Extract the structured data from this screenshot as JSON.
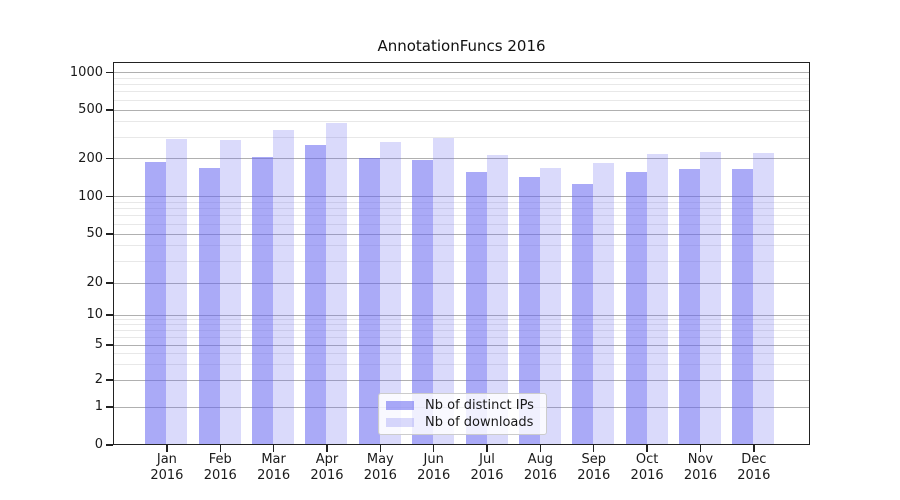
{
  "title": "AnnotationFuncs 2016",
  "chart_data": {
    "type": "bar",
    "title": "AnnotationFuncs 2016",
    "xlabel": "",
    "ylabel": "",
    "yscale": "symlog",
    "grid": true,
    "legend_position": "lower center",
    "ylim": [
      0,
      1200
    ],
    "categories": [
      "Jan 2016",
      "Feb 2016",
      "Mar 2016",
      "Apr 2016",
      "May 2016",
      "Jun 2016",
      "Jul 2016",
      "Aug 2016",
      "Sep 2016",
      "Oct 2016",
      "Nov 2016",
      "Dec 2016"
    ],
    "series": [
      {
        "name": "Nb of distinct IPs",
        "color": "rgba(100,100,240,0.55)",
        "values": [
          190,
          170,
          207,
          260,
          205,
          198,
          158,
          145,
          127,
          158,
          167,
          167
        ]
      },
      {
        "name": "Nb of downloads",
        "color": "rgba(100,100,240,0.24)",
        "values": [
          292,
          288,
          343,
          392,
          276,
          297,
          215,
          170,
          186,
          218,
          228,
          224
        ]
      }
    ],
    "ytick_labels": [
      "1000",
      "500",
      "200",
      "100",
      "50",
      "20",
      "10",
      "5",
      "2",
      "1",
      "0"
    ],
    "ytick_values": [
      1000,
      500,
      200,
      100,
      50,
      20,
      10,
      5,
      2,
      1,
      0
    ],
    "minor_grid_values": [
      900,
      800,
      700,
      600,
      400,
      300,
      90,
      80,
      70,
      60,
      40,
      30,
      9,
      8,
      7,
      6,
      4,
      3
    ]
  },
  "colors": {
    "distinct_ips": "rgba(100,100,240,0.55)",
    "downloads": "rgba(100,100,240,0.24)",
    "grid_major": "#b0b0b0",
    "grid_minor": "#e8e8e8",
    "spine": "#222222"
  }
}
